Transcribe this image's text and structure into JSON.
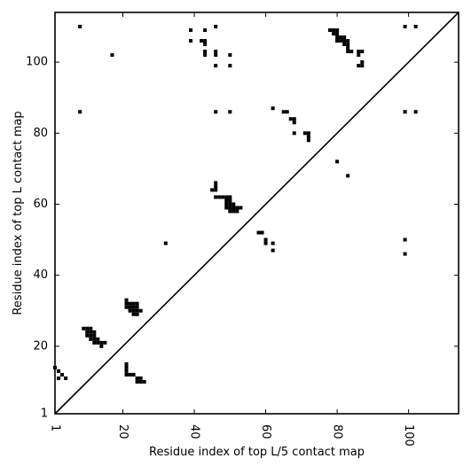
{
  "chart_data": {
    "type": "scatter",
    "marker": "square",
    "title": "",
    "xlabel": "Residue index of top L/5 contact map",
    "ylabel": "Residue index of top L contact map",
    "xlim": [
      1,
      114
    ],
    "ylim": [
      1,
      114
    ],
    "x_ticks": [
      1,
      20,
      40,
      60,
      80,
      100
    ],
    "y_ticks": [
      1,
      20,
      40,
      60,
      80,
      100
    ],
    "x_tick_labels": [
      "1",
      "20",
      "40",
      "60",
      "80",
      "100"
    ],
    "y_tick_labels": [
      "1",
      "20",
      "40",
      "60",
      "80",
      "100"
    ],
    "x_tick_rotation": -90,
    "diagonal": true,
    "grid": false,
    "colors": {
      "marker": "#000000",
      "axis": "#000000",
      "background": "#ffffff"
    },
    "series": [
      {
        "points": [
          [
            1,
            14
          ],
          [
            2,
            13
          ],
          [
            3,
            12
          ],
          [
            2,
            11
          ],
          [
            4,
            11
          ],
          [
            8,
            110
          ],
          [
            8,
            86
          ],
          [
            17,
            102
          ],
          [
            9,
            25
          ],
          [
            10,
            25
          ],
          [
            11,
            25
          ],
          [
            10,
            24
          ],
          [
            11,
            24
          ],
          [
            12,
            24
          ],
          [
            10,
            23
          ],
          [
            11,
            23
          ],
          [
            12,
            23
          ],
          [
            11,
            22
          ],
          [
            12,
            22
          ],
          [
            13,
            22
          ],
          [
            12,
            21
          ],
          [
            13,
            21
          ],
          [
            14,
            21
          ],
          [
            15,
            21
          ],
          [
            14,
            20
          ],
          [
            21,
            33
          ],
          [
            21,
            32
          ],
          [
            22,
            32
          ],
          [
            23,
            32
          ],
          [
            24,
            32
          ],
          [
            21,
            31
          ],
          [
            22,
            31
          ],
          [
            23,
            31
          ],
          [
            24,
            31
          ],
          [
            22,
            30
          ],
          [
            23,
            30
          ],
          [
            24,
            30
          ],
          [
            25,
            30
          ],
          [
            23,
            29
          ],
          [
            24,
            29
          ],
          [
            21,
            15
          ],
          [
            21,
            14
          ],
          [
            21,
            13
          ],
          [
            21,
            12
          ],
          [
            22,
            12
          ],
          [
            23,
            12
          ],
          [
            24,
            11
          ],
          [
            25,
            11
          ],
          [
            24,
            10
          ],
          [
            25,
            10
          ],
          [
            26,
            10
          ],
          [
            32,
            49
          ],
          [
            39,
            109
          ],
          [
            39,
            106
          ],
          [
            43,
            109
          ],
          [
            42,
            106
          ],
          [
            43,
            106
          ],
          [
            43,
            105
          ],
          [
            43,
            103
          ],
          [
            43,
            102
          ],
          [
            46,
            110
          ],
          [
            46,
            103
          ],
          [
            46,
            102
          ],
          [
            46,
            99
          ],
          [
            46,
            86
          ],
          [
            50,
            102
          ],
          [
            50,
            99
          ],
          [
            50,
            86
          ],
          [
            46,
            66
          ],
          [
            46,
            65
          ],
          [
            45,
            64
          ],
          [
            46,
            64
          ],
          [
            46,
            62
          ],
          [
            47,
            62
          ],
          [
            48,
            62
          ],
          [
            49,
            62
          ],
          [
            50,
            62
          ],
          [
            49,
            61
          ],
          [
            50,
            61
          ],
          [
            49,
            60
          ],
          [
            50,
            60
          ],
          [
            51,
            60
          ],
          [
            49,
            59
          ],
          [
            50,
            59
          ],
          [
            51,
            59
          ],
          [
            52,
            59
          ],
          [
            53,
            59
          ],
          [
            50,
            58
          ],
          [
            51,
            58
          ],
          [
            52,
            58
          ],
          [
            58,
            52
          ],
          [
            59,
            52
          ],
          [
            60,
            50
          ],
          [
            60,
            49
          ],
          [
            62,
            49
          ],
          [
            62,
            47
          ],
          [
            62,
            87
          ],
          [
            65,
            86
          ],
          [
            66,
            86
          ],
          [
            67,
            84
          ],
          [
            68,
            84
          ],
          [
            68,
            83
          ],
          [
            68,
            80
          ],
          [
            71,
            80
          ],
          [
            72,
            80
          ],
          [
            72,
            79
          ],
          [
            72,
            78
          ],
          [
            78,
            109
          ],
          [
            79,
            109
          ],
          [
            80,
            109
          ],
          [
            79,
            108
          ],
          [
            80,
            108
          ],
          [
            80,
            107
          ],
          [
            81,
            107
          ],
          [
            82,
            107
          ],
          [
            80,
            106
          ],
          [
            81,
            106
          ],
          [
            82,
            106
          ],
          [
            83,
            106
          ],
          [
            82,
            105
          ],
          [
            83,
            105
          ],
          [
            83,
            104
          ],
          [
            83,
            103
          ],
          [
            84,
            103
          ],
          [
            86,
            103
          ],
          [
            87,
            103
          ],
          [
            86,
            102
          ],
          [
            87,
            100
          ],
          [
            86,
            99
          ],
          [
            87,
            99
          ],
          [
            80,
            72
          ],
          [
            83,
            68
          ],
          [
            99,
            110
          ],
          [
            102,
            110
          ],
          [
            99,
            86
          ],
          [
            102,
            86
          ],
          [
            99,
            50
          ],
          [
            99,
            46
          ]
        ]
      }
    ]
  }
}
